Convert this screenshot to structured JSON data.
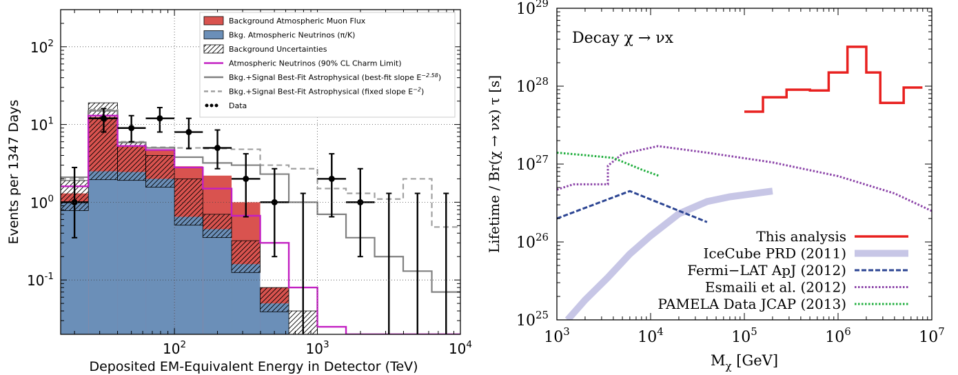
{
  "chart_data": [
    {
      "type": "bar",
      "xlabel": "Deposited EM-Equivalent Energy in Detector (TeV)",
      "ylabel": "Events per 1347 Days",
      "x_scale": "log",
      "y_scale": "log",
      "xlim": [
        16,
        10000
      ],
      "ylim": [
        0.02,
        300
      ],
      "x_ticks": [
        {
          "v": 100,
          "base": "10",
          "exp": "2"
        },
        {
          "v": 1000,
          "base": "10",
          "exp": "3"
        },
        {
          "v": 10000,
          "base": "10",
          "exp": "4"
        }
      ],
      "y_ticks": [
        {
          "v": 0.1,
          "base": "10",
          "exp": "-1"
        },
        {
          "v": 1,
          "base": "10",
          "exp": "0"
        },
        {
          "v": 10,
          "base": "10",
          "exp": "1"
        },
        {
          "v": 100,
          "base": "10",
          "exp": "2"
        }
      ],
      "grid": true,
      "legend_position": "top-right",
      "bin_edges": [
        16,
        25,
        40,
        63,
        100,
        158,
        251,
        398,
        631,
        1000,
        1585,
        2512,
        3981,
        6310,
        10000
      ],
      "series": [
        {
          "name": "Background Atmospheric Muon Flux",
          "color": "#d9534f",
          "values": [
            1.3,
            12.5,
            5.2,
            4.8,
            2.9,
            2.2,
            1.0,
            0.08,
            0.02,
            0.02,
            0.02,
            0.02,
            0.02,
            0.02
          ]
        },
        {
          "name": "Bkg. Atmospheric Neutrinos (π/K)",
          "color": "#6b8fb8",
          "values": [
            1.0,
            2.5,
            2.45,
            2.0,
            0.65,
            0.45,
            0.16,
            0.05,
            0.02,
            0.02,
            0.02,
            0.02,
            0.02,
            0.02
          ]
        },
        {
          "name": "Background Uncertainties",
          "color": "#000000",
          "values": [
            1.9,
            19.0,
            5.8,
            4.0,
            2.0,
            0.7,
            0.32,
            0.08,
            0.04,
            0.02,
            0.02,
            0.02,
            0.02,
            0.02
          ]
        },
        {
          "name": "Atmospheric Neutrinos (90% CL Charm Limit)",
          "color": "#c21fc2",
          "values": [
            1.6,
            13.0,
            5.3,
            4.7,
            2.8,
            1.5,
            0.67,
            0.3,
            0.08,
            0.025,
            0.02,
            0.02,
            0.02,
            0.02
          ]
        },
        {
          "name": "Bkg.+Signal Best-Fit Astrophysical (best-fit slope E",
          "exp": "−2.58",
          "name_end": ")",
          "color": "#808080",
          "values": [
            2.1,
            15.0,
            5.9,
            5.0,
            3.8,
            3.2,
            3.0,
            2.3,
            1.0,
            0.7,
            0.35,
            0.2,
            0.13,
            0.07
          ]
        },
        {
          "name": "Bkg.+Signal Best-Fit Astrophysical (fixed slope E",
          "exp": "−2",
          "name_end": ")",
          "color": "#a0a0a0",
          "values": [
            2.0,
            15.5,
            6.0,
            5.1,
            5.0,
            4.9,
            4.8,
            3.0,
            2.7,
            1.5,
            1.3,
            1.1,
            2.0,
            0.48
          ]
        }
      ],
      "data_points": {
        "name": "Data",
        "points": [
          {
            "x": 20,
            "y": 1,
            "xerr": [
              16,
              25
            ],
            "yerr": [
              0.35,
              2.8
            ]
          },
          {
            "x": 32,
            "y": 12,
            "xerr": [
              25,
              40
            ],
            "yerr": [
              8,
              16
            ]
          },
          {
            "x": 50,
            "y": 9,
            "xerr": [
              40,
              63
            ],
            "yerr": [
              6,
              13
            ]
          },
          {
            "x": 79,
            "y": 12,
            "xerr": [
              63,
              100
            ],
            "yerr": [
              8,
              16.5
            ]
          },
          {
            "x": 126,
            "y": 8,
            "xerr": [
              100,
              158
            ],
            "yerr": [
              4.9,
              12
            ]
          },
          {
            "x": 200,
            "y": 5,
            "xerr": [
              158,
              251
            ],
            "yerr": [
              2.7,
              8.5
            ]
          },
          {
            "x": 316,
            "y": 2,
            "xerr": [
              251,
              398
            ],
            "yerr": [
              0.65,
              4.2
            ]
          },
          {
            "x": 501,
            "y": 1,
            "xerr": [
              398,
              631
            ],
            "yerr": [
              0.2,
              2.7
            ]
          },
          {
            "x": 1259,
            "y": 2,
            "xerr": [
              1000,
              1585
            ],
            "yerr": [
              0.65,
              4.2
            ]
          },
          {
            "x": 1995,
            "y": 1,
            "xerr": [
              1585,
              2512
            ],
            "yerr": [
              0.2,
              2.7
            ]
          }
        ],
        "upper_limits": [
          {
            "x": 794,
            "ymax": 1.3
          },
          {
            "x": 3162,
            "ymax": 1.3
          },
          {
            "x": 5012,
            "ymax": 1.3
          },
          {
            "x": 7943,
            "ymax": 1.3
          }
        ]
      }
    },
    {
      "type": "line",
      "annotation": "Decay χ → νx",
      "xlabel": "M",
      "xlabel_sub": "χ",
      "xlabel_end": " [GeV]",
      "ylabel": "Lifetime / Br(χ → νx) τ [s]",
      "x_scale": "log",
      "y_scale": "log",
      "xlim": [
        1000,
        10000000
      ],
      "ylim": [
        1e+25,
        1e+29
      ],
      "x_ticks": [
        {
          "v": 1000,
          "base": "10",
          "exp": "3"
        },
        {
          "v": 10000,
          "base": "10",
          "exp": "4"
        },
        {
          "v": 100000,
          "base": "10",
          "exp": "5"
        },
        {
          "v": 1000000,
          "base": "10",
          "exp": "6"
        },
        {
          "v": 10000000,
          "base": "10",
          "exp": "7"
        }
      ],
      "y_ticks": [
        {
          "v": 1e+25,
          "base": "10",
          "exp": "25"
        },
        {
          "v": 1e+26,
          "base": "10",
          "exp": "26"
        },
        {
          "v": 1e+27,
          "base": "10",
          "exp": "27"
        },
        {
          "v": 1e+28,
          "base": "10",
          "exp": "28"
        },
        {
          "v": 1e+29,
          "base": "10",
          "exp": "29"
        }
      ],
      "grid": false,
      "legend_position": "bottom-right",
      "series": [
        {
          "name": "This analysis",
          "color": "#e8201f",
          "style": "solid",
          "width": 3.5,
          "points": [
            [
              100000,
              4.7e+27
            ],
            [
              158000,
              4.7e+27
            ],
            [
              158000,
              7.2e+27
            ],
            [
              282000,
              7.2e+27
            ],
            [
              282000,
              9e+27
            ],
            [
              501000,
              9e+27
            ],
            [
              501000,
              8.8e+27
            ],
            [
              794000,
              8.8e+27
            ],
            [
              794000,
              1.5e+28
            ],
            [
              1260000,
              1.5e+28
            ],
            [
              1260000,
              3.2e+28
            ],
            [
              2000000,
              3.2e+28
            ],
            [
              2000000,
              1.5e+28
            ],
            [
              2820000,
              1.5e+28
            ],
            [
              2820000,
              6.1e+27
            ],
            [
              5010000,
              6.1e+27
            ],
            [
              5010000,
              9.6e+27
            ],
            [
              7940000,
              9.6e+27
            ]
          ]
        },
        {
          "name": "IceCube PRD (2011)",
          "color": "#c7c6e6",
          "style": "solid",
          "width": 10,
          "points": [
            [
              1300,
              1e+25
            ],
            [
              2000,
              1.8e+25
            ],
            [
              3500,
              3.5e+25
            ],
            [
              6000,
              7e+25
            ],
            [
              10000,
              1.2e+26
            ],
            [
              20000,
              2.3e+26
            ],
            [
              40000,
              3.3e+26
            ],
            [
              70000,
              3.8e+26
            ],
            [
              200000,
              4.5e+26
            ]
          ]
        },
        {
          "name": "Fermi−LAT ApJ (2012)",
          "color": "#2c4593",
          "style": "dashed",
          "width": 3,
          "points": [
            [
              1000,
              2e+26
            ],
            [
              6000,
              4.5e+26
            ],
            [
              40000,
              1.8e+26
            ]
          ]
        },
        {
          "name": "Esmaili et al. (2012)",
          "color": "#8b43a8",
          "style": "dotted",
          "width": 3,
          "points": [
            [
              1000,
              4.7e+26
            ],
            [
              1500,
              5.5e+26
            ],
            [
              3500,
              5.5e+26
            ],
            [
              3500,
              9.5e+26
            ],
            [
              5000,
              1.35e+27
            ],
            [
              12000,
              1.7e+27
            ],
            [
              40000,
              1.4e+27
            ],
            [
              200000,
              1.05e+27
            ],
            [
              1000000,
              7e+26
            ],
            [
              4000000,
              4.2e+26
            ],
            [
              10000000,
              2.5e+26
            ]
          ]
        },
        {
          "name": "PAMELA Data JCAP (2013)",
          "color": "#1fae3d",
          "style": "dotted",
          "width": 3,
          "points": [
            [
              1000,
              1.4e+27
            ],
            [
              2000,
              1.3e+27
            ],
            [
              4000,
              1.2e+27
            ],
            [
              8000,
              8.5e+26
            ],
            [
              12500,
              7e+26
            ]
          ]
        }
      ]
    }
  ]
}
